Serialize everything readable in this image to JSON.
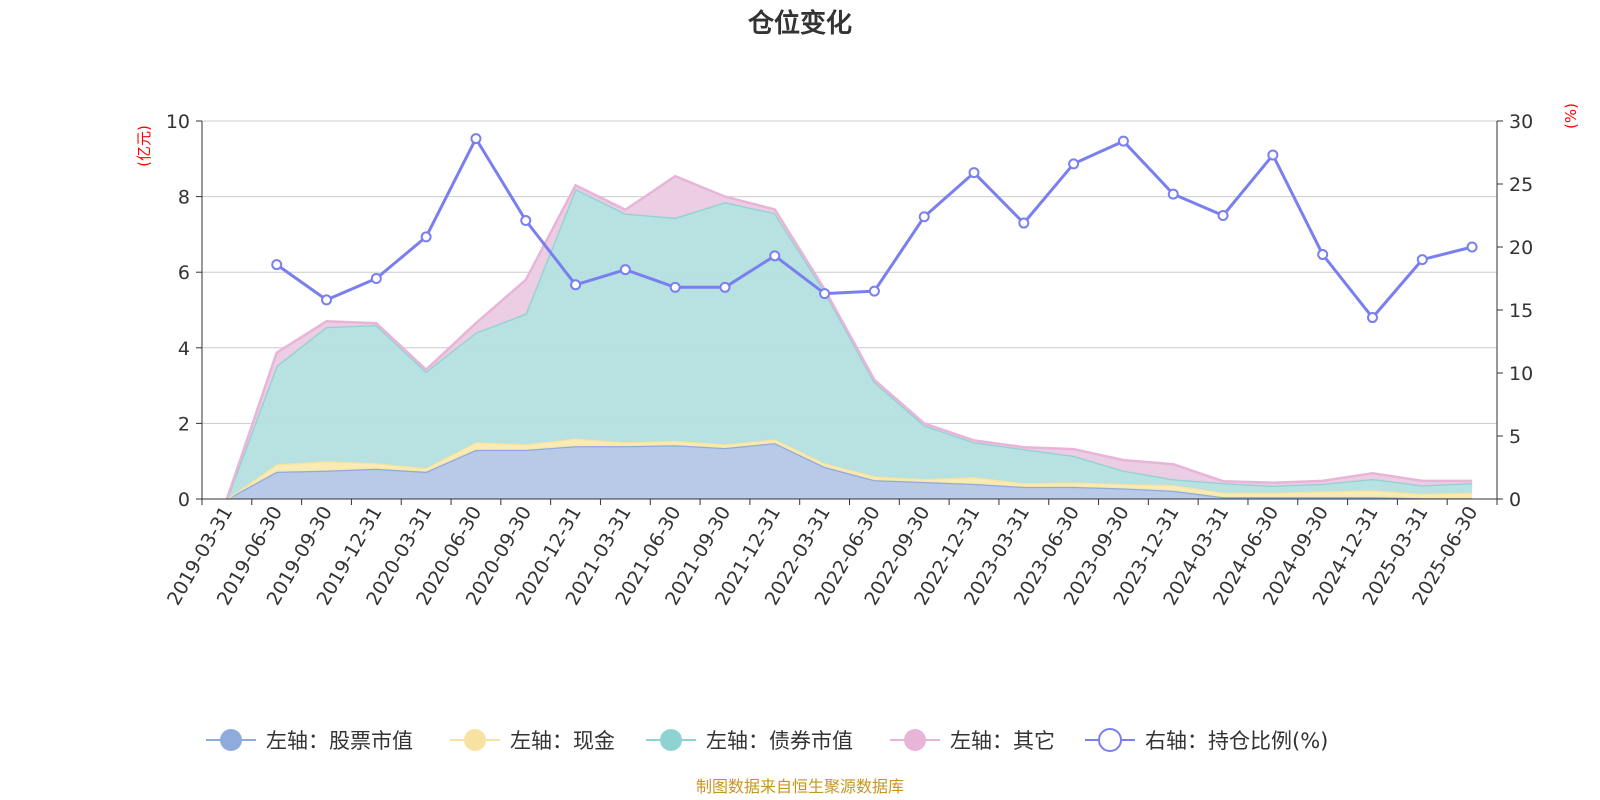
{
  "chart_data": {
    "type": "area",
    "title": "仓位变化",
    "left_unit": "(亿元)",
    "right_unit": "(%)",
    "source": "制图数据来自恒生聚源数据库",
    "source_color": "#c8961e",
    "x": [
      "2019-03-31",
      "2019-06-30",
      "2019-09-30",
      "2019-12-31",
      "2020-03-31",
      "2020-06-30",
      "2020-09-30",
      "2020-12-31",
      "2021-03-31",
      "2021-06-30",
      "2021-09-30",
      "2021-12-31",
      "2022-03-31",
      "2022-06-30",
      "2022-09-30",
      "2022-12-31",
      "2023-03-31",
      "2023-06-30",
      "2023-09-30",
      "2023-12-31",
      "2024-03-31",
      "2024-06-30",
      "2024-09-30",
      "2024-12-31",
      "2025-03-31",
      "2025-06-30"
    ],
    "left_axis": {
      "min": 0,
      "max": 10,
      "ticks": [
        0,
        2,
        4,
        6,
        8,
        10
      ]
    },
    "right_axis": {
      "min": 0,
      "max": 30,
      "ticks": [
        0,
        5,
        10,
        15,
        20,
        25,
        30
      ]
    },
    "grid": true,
    "legend_position": "bottom",
    "series": [
      {
        "name": "左轴：股票市值",
        "axis": "left",
        "stack": true,
        "color": "#8faadc",
        "fill": "#b4c7e7",
        "values": [
          0,
          0.72,
          0.75,
          0.8,
          0.72,
          1.3,
          1.3,
          1.4,
          1.4,
          1.42,
          1.35,
          1.48,
          0.85,
          0.5,
          0.45,
          0.4,
          0.32,
          0.32,
          0.28,
          0.22,
          0.05,
          0.05,
          0.05,
          0.05,
          0.02,
          0.02
        ]
      },
      {
        "name": "左轴：现金",
        "axis": "left",
        "stack": true,
        "color": "#f7e2a1",
        "fill": "#f9eaaf",
        "values": [
          0,
          0.2,
          0.25,
          0.15,
          0.1,
          0.2,
          0.15,
          0.2,
          0.1,
          0.12,
          0.1,
          0.1,
          0.1,
          0.1,
          0.08,
          0.18,
          0.1,
          0.12,
          0.12,
          0.15,
          0.12,
          0.12,
          0.15,
          0.18,
          0.12,
          0.15
        ]
      },
      {
        "name": "左轴：债券市值",
        "axis": "left",
        "stack": true,
        "color": "#8ed3d1",
        "fill": "#b3e0df",
        "values": [
          0,
          2.6,
          3.55,
          3.65,
          2.55,
          2.9,
          3.45,
          6.6,
          6.05,
          5.9,
          6.4,
          5.98,
          4.55,
          2.5,
          1.42,
          0.92,
          0.9,
          0.7,
          0.35,
          0.15,
          0.25,
          0.18,
          0.2,
          0.3,
          0.22,
          0.25
        ]
      },
      {
        "name": "左轴：其它",
        "axis": "left",
        "stack": true,
        "color": "#e8b4d8",
        "fill": "#ebcbe3",
        "values": [
          0,
          0.35,
          0.15,
          0.05,
          0.05,
          0.25,
          0.9,
          0.1,
          0.1,
          1.1,
          0.15,
          0.1,
          0.05,
          0.05,
          0.05,
          0.05,
          0.05,
          0.18,
          0.28,
          0.4,
          0.05,
          0.08,
          0.08,
          0.15,
          0.12,
          0.06
        ]
      },
      {
        "name": "右轴：持仓比例(%)",
        "axis": "right",
        "stack": false,
        "color": "#7a7ff0",
        "values": [
          null,
          18.6,
          15.8,
          17.5,
          20.8,
          28.6,
          22.1,
          17.0,
          18.2,
          16.8,
          16.8,
          19.3,
          16.3,
          16.5,
          22.4,
          25.9,
          21.9,
          26.6,
          28.4,
          24.2,
          22.5,
          27.3,
          19.4,
          14.4,
          19.0,
          20.0
        ]
      }
    ]
  }
}
